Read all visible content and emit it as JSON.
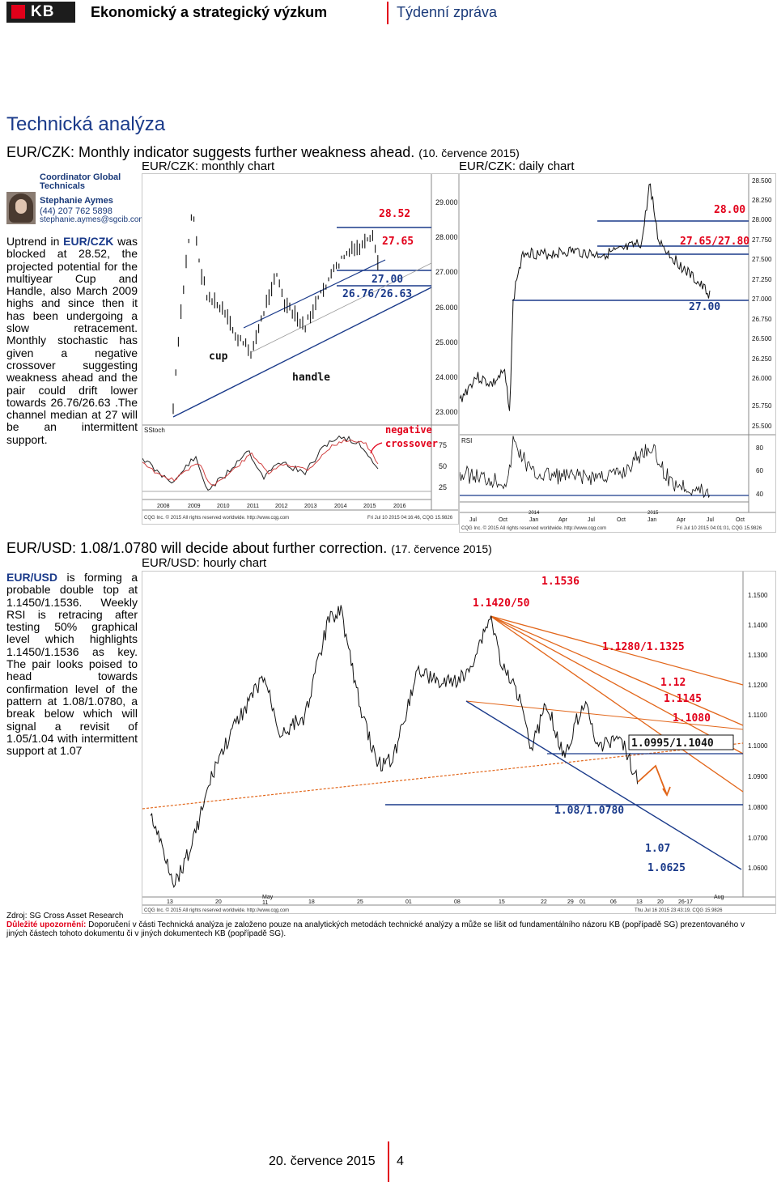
{
  "header": {
    "logo": "KB",
    "title": "Ekonomický a strategický výzkum",
    "subtitle": "Týdenní zpráva"
  },
  "section_title": "Technická analýza",
  "article1": {
    "headline": "EUR/CZK: Monthly indicator suggests further weakness ahead.",
    "date": "(10. července 2015)",
    "chart1_title": "EUR/CZK: monthly chart",
    "chart2_title": "EUR/CZK: daily chart",
    "author": {
      "role": "Coordinator Global Technicals",
      "name": "Stephanie Aymes",
      "phone": "(44) 207 762 5898",
      "email": "stephanie.aymes@sgcib.com"
    },
    "body_pre": "Uptrend in ",
    "body_kw": "EUR/CZK",
    "body_post": " was blocked at 28.52, the projected potential for the multiyear Cup and Handle, also March 2009 highs and since then it has been undergoing a slow retracement. Monthly stochastic has given a negative crossover suggesting weakness ahead and the pair could drift lower towards 26.76/26.63 .The channel median at 27 will be an intermittent support."
  },
  "monthly_chart": {
    "annotations": [
      "28.52",
      "27.65",
      "27.00",
      "26.76/26.63",
      "cup",
      "handle",
      "negative",
      "crossover"
    ],
    "axis_main": [
      "29.000",
      "28.000",
      "27.000",
      "26.000",
      "25.000",
      "24.000",
      "23.000"
    ],
    "axis_osc": [
      "75",
      "50",
      "25"
    ],
    "osc_label": "SStoch",
    "years": [
      "2008",
      "2009",
      "2010",
      "2011",
      "2012",
      "2013",
      "2014",
      "2015",
      "2016"
    ],
    "footer_left": "CQG Inc. © 2015 All rights reserved worldwide. http://www.cqg.com",
    "footer_right": "Fri Jul 10 2015 04:16:46, CQG 15.9826",
    "colors": {
      "annotation": "#e2001a",
      "line": "#1a3a8a",
      "stoch_red": "#d04040"
    }
  },
  "daily_chart": {
    "annotations": [
      "28.00",
      "27.65/27.80",
      "27.00"
    ],
    "axis_main": [
      "28.500",
      "28.250",
      "28.000",
      "27.750",
      "27.500",
      "27.250",
      "27.000",
      "26.750",
      "26.500",
      "26.250",
      "26.000",
      "25.750",
      "25.500"
    ],
    "axis_osc": [
      "80",
      "60",
      "40"
    ],
    "osc_label": "RSI",
    "months": [
      "Jul",
      "Oct",
      "Jan",
      "Apr",
      "Jul",
      "Oct",
      "Jan",
      "Apr",
      "Jul",
      "Oct"
    ],
    "years": [
      "2014",
      "2015"
    ],
    "footer_left": "CQG Inc. © 2015 All rights reserved worldwide. http://www.cqg.com",
    "footer_right": "Fri Jul 10 2015 04:01:01, CQG 15.9826"
  },
  "article2": {
    "headline": "EUR/USD: 1.08/1.0780 will decide about further correction.",
    "date": "(17. července 2015)",
    "chart_title": "EUR/USD: hourly chart",
    "body_kw": "EUR/USD",
    "body_post": " is forming a probable double top at 1.1450/1.1536. Weekly RSI is retracing after testing 50% graphical level which highlights 1.1450/1.1536 as key. The pair looks poised to head towards confirmation level of the pattern at 1.08/1.0780, a break below which will signal a revisit of 1.05/1.04 with intermittent support at 1.07"
  },
  "hourly_chart": {
    "annotations": [
      "1.1536",
      "1.1420/50",
      "1.1280/1.1325",
      "1.12",
      "1.1145",
      "1.1080",
      "1.0995/1.1040",
      "1.08/1.0780",
      "1.07",
      "1.0625"
    ],
    "axis": [
      "1.1500",
      "1.1400",
      "1.1300",
      "1.1200",
      "1.1100",
      "1.1000",
      "1.0900",
      "1.0800",
      "1.0700",
      "1.0600"
    ],
    "dates": [
      "13",
      "20",
      "May",
      "11",
      "18",
      "25",
      "01",
      "08",
      "15",
      "22",
      "29",
      "01",
      "06",
      "13",
      "20",
      "26-17",
      "Aug"
    ],
    "footer_left": "CQG Inc. © 2015 All rights reserved worldwide. http://www.cqg.com",
    "footer_right": "Thu Jul 16 2015 23:43:19, CQG 15.9826"
  },
  "footer": {
    "source": "Zdroj: SG Cross Asset Research",
    "warning_label": "Důležité upozornění:",
    "warning_text": " Doporučení v části Technická analýza je založeno pouze na analytických metodách technické analýzy a může se lišit od fundamentálního názoru KB (popřípadě SG) prezentovaného v jiných částech tohoto dokumentu či v jiných dokumentech KB (popřípadě SG).",
    "page_date": "20. července 2015",
    "page_number": "4"
  }
}
